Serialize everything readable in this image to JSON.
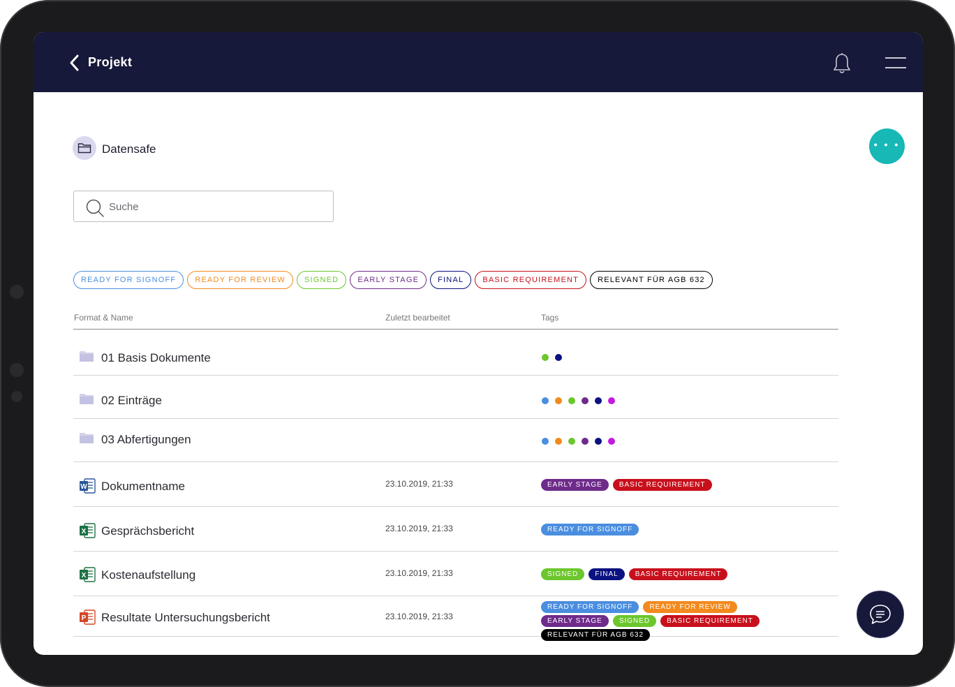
{
  "appbar": {
    "title": "Projekt",
    "back_icon": "chevron-left-icon",
    "bell_icon": "bell-icon",
    "menu_icon": "hamburger-menu-icon",
    "background": "#17193a"
  },
  "breadcrumb": {
    "icon": "folder-icon",
    "label": "Datensafe"
  },
  "fab": {
    "icon": "more-dots-icon",
    "color": "#17b8b6"
  },
  "search": {
    "placeholder": "Suche",
    "value": ""
  },
  "filter_chips": [
    {
      "label": "READY FOR SIGNOFF",
      "color": "#4a8ee0"
    },
    {
      "label": "READY FOR REVIEW",
      "color": "#f28a1e"
    },
    {
      "label": "SIGNED",
      "color": "#6cc62c"
    },
    {
      "label": "EARLY STAGE",
      "color": "#6e2b8a"
    },
    {
      "label": "FINAL",
      "color": "#0a1180"
    },
    {
      "label": "BASIC REQUIREMENT",
      "color": "#c8101c"
    },
    {
      "label": "RELEVANT FÜR AGB 632",
      "color": "#000000"
    }
  ],
  "table": {
    "headers": {
      "name": "Format & Name",
      "modified": "Zuletzt bearbeitet",
      "tags": "Tags"
    },
    "rows": [
      {
        "type": "folder",
        "icon": "folder-icon",
        "name": "01 Basis Dokumente",
        "modified": "",
        "dots": [
          "#6cc62c",
          "#0a1180"
        ],
        "tags": []
      },
      {
        "type": "folder",
        "icon": "folder-icon",
        "name": "02 Einträge",
        "modified": "",
        "dots": [
          "#4a8ee0",
          "#f28a1e",
          "#6cc62c",
          "#6e2b8a",
          "#0a1180",
          "#c21ae0"
        ],
        "tags": []
      },
      {
        "type": "folder",
        "icon": "folder-icon",
        "name": "03 Abfertigungen",
        "modified": "",
        "dots": [
          "#4a8ee0",
          "#f28a1e",
          "#6cc62c",
          "#6e2b8a",
          "#0a1180",
          "#c21ae0"
        ],
        "tags": []
      },
      {
        "type": "word",
        "icon": "word-file-icon",
        "name": "Dokumentname",
        "modified": "23.10.2019, 21:33",
        "dots": [],
        "tags": [
          {
            "label": "EARLY STAGE",
            "color": "#6e2b8a"
          },
          {
            "label": "BASIC REQUIREMENT",
            "color": "#c8101c"
          }
        ]
      },
      {
        "type": "excel",
        "icon": "excel-file-icon",
        "name": "Gesprächsbericht",
        "modified": "23.10.2019, 21:33",
        "dots": [],
        "tags": [
          {
            "label": "READY FOR SIGNOFF",
            "color": "#4a8ee0"
          }
        ]
      },
      {
        "type": "excel",
        "icon": "excel-file-icon",
        "name": "Kostenaufstellung",
        "modified": "23.10.2019, 21:33",
        "dots": [],
        "tags": [
          {
            "label": "SIGNED",
            "color": "#6cc62c"
          },
          {
            "label": "FINAL",
            "color": "#0a1180"
          },
          {
            "label": "BASIC REQUIREMENT",
            "color": "#c8101c"
          }
        ]
      },
      {
        "type": "powerpoint",
        "icon": "powerpoint-file-icon",
        "name": "Resultate Untersuchungsbericht",
        "modified": "23.10.2019, 21:33",
        "dots": [],
        "tags": [
          {
            "label": "READY FOR SIGNOFF",
            "color": "#4a8ee0"
          },
          {
            "label": "READY FOR REVIEW",
            "color": "#f28a1e"
          },
          {
            "label": "EARLY STAGE",
            "color": "#6e2b8a"
          },
          {
            "label": "SIGNED",
            "color": "#6cc62c"
          },
          {
            "label": "BASIC REQUIREMENT",
            "color": "#c8101c"
          },
          {
            "label": "RELEVANT FÜR AGB 632",
            "color": "#000000"
          }
        ]
      }
    ]
  },
  "chat": {
    "icon": "chat-bubble-icon"
  }
}
